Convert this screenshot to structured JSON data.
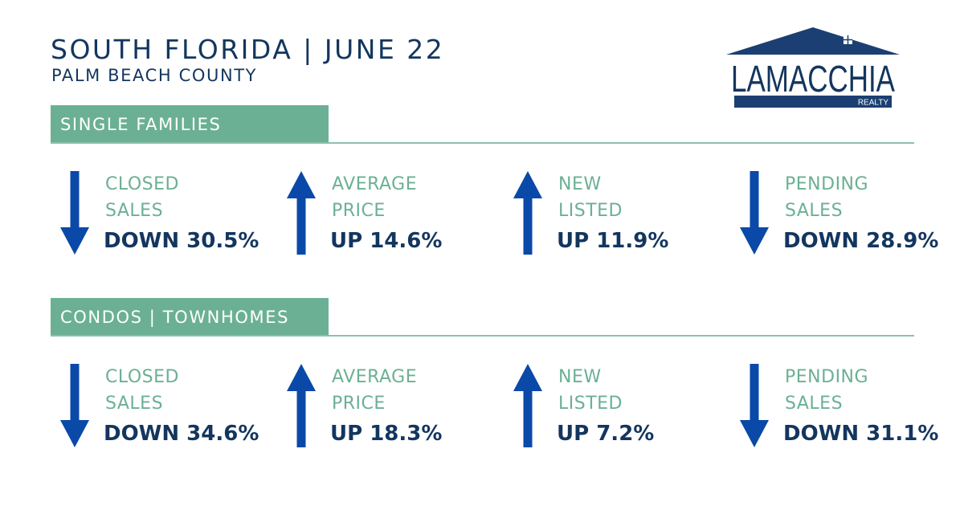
{
  "header": {
    "title": "SOUTH FLORIDA | JUNE 22",
    "subtitle": "PALM BEACH COUNTY"
  },
  "logo": {
    "name": "LAMACCHIA",
    "tagline": "REALTY",
    "colors": {
      "navy": "#13365e",
      "roof": "#1b3f72"
    }
  },
  "colors": {
    "navy": "#13365e",
    "green": "#6bb095",
    "arrow_blue": "#0a49a8"
  },
  "sections": [
    {
      "title": "SINGLE FAMILIES",
      "stats": [
        {
          "label_line1": "CLOSED",
          "label_line2": "SALES",
          "value": "DOWN 30.5%",
          "direction": "down",
          "icon": "arrow-down-icon"
        },
        {
          "label_line1": "AVERAGE",
          "label_line2": "PRICE",
          "value": "UP 14.6%",
          "direction": "up",
          "icon": "arrow-up-icon"
        },
        {
          "label_line1": "NEW",
          "label_line2": "LISTED",
          "value": "UP 11.9%",
          "direction": "up",
          "icon": "arrow-up-icon"
        },
        {
          "label_line1": "PENDING",
          "label_line2": "SALES",
          "value": "DOWN 28.9%",
          "direction": "down",
          "icon": "arrow-down-icon"
        }
      ]
    },
    {
      "title": "CONDOS | TOWNHOMES",
      "stats": [
        {
          "label_line1": "CLOSED",
          "label_line2": "SALES",
          "value": "DOWN 34.6%",
          "direction": "down",
          "icon": "arrow-down-icon"
        },
        {
          "label_line1": "AVERAGE",
          "label_line2": "PRICE",
          "value": "UP 18.3%",
          "direction": "up",
          "icon": "arrow-up-icon"
        },
        {
          "label_line1": "NEW",
          "label_line2": "LISTED",
          "value": "UP 7.2%",
          "direction": "up",
          "icon": "arrow-up-icon"
        },
        {
          "label_line1": "PENDING",
          "label_line2": "SALES",
          "value": "DOWN 31.1%",
          "direction": "down",
          "icon": "arrow-down-icon"
        }
      ]
    }
  ]
}
